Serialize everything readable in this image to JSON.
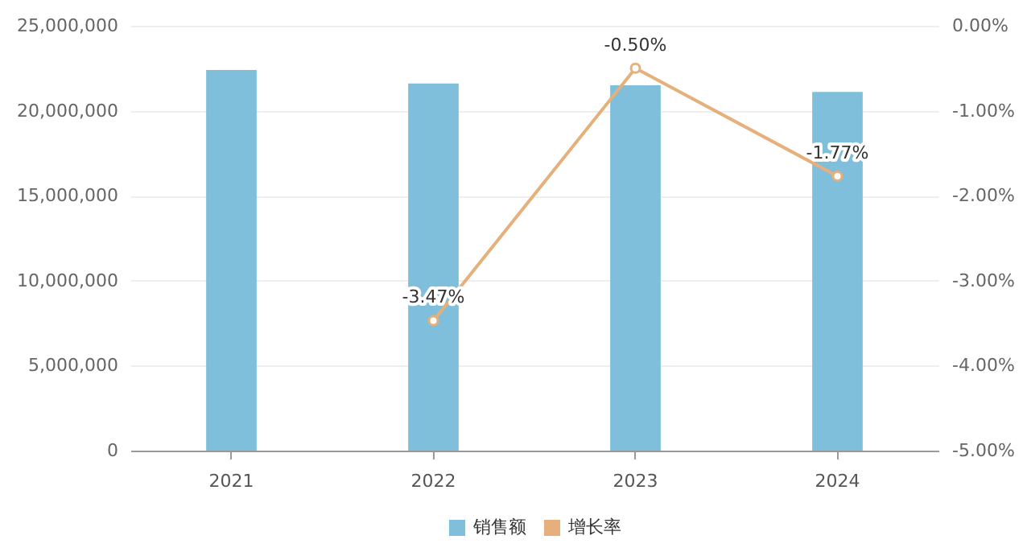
{
  "chart_data": {
    "type": "bar",
    "categories": [
      "2021",
      "2022",
      "2023",
      "2024"
    ],
    "series": [
      {
        "name": "销售额",
        "color": "#7fbfdc",
        "values": [
          22400000,
          21600000,
          21500000,
          21100000
        ]
      },
      {
        "name": "增长率",
        "type": "line",
        "axis": "y2",
        "color": "#e5b07b",
        "marker": "circle",
        "values": [
          null,
          -3.47,
          -0.5,
          -1.77
        ],
        "value_labels": [
          null,
          "-3.47%",
          "-0.50%",
          "-1.77%"
        ]
      }
    ],
    "ylim": [
      0,
      25000000
    ],
    "yticks": [
      {
        "value": 0,
        "label": "0"
      },
      {
        "value": 5000000,
        "label": "5,000,000"
      },
      {
        "value": 10000000,
        "label": "10,000,000"
      },
      {
        "value": 15000000,
        "label": "15,000,000"
      },
      {
        "value": 20000000,
        "label": "20,000,000"
      },
      {
        "value": 25000000,
        "label": "25,000,000"
      }
    ],
    "y2lim": [
      -5,
      0
    ],
    "y2ticks": [
      {
        "value": -5,
        "label": "-5.00%"
      },
      {
        "value": -4,
        "label": "-4.00%"
      },
      {
        "value": -3,
        "label": "-3.00%"
      },
      {
        "value": -2,
        "label": "-2.00%"
      },
      {
        "value": -1,
        "label": "-1.00%"
      },
      {
        "value": 0,
        "label": "0.00%"
      }
    ],
    "grid": "y",
    "legend": "bottom"
  }
}
